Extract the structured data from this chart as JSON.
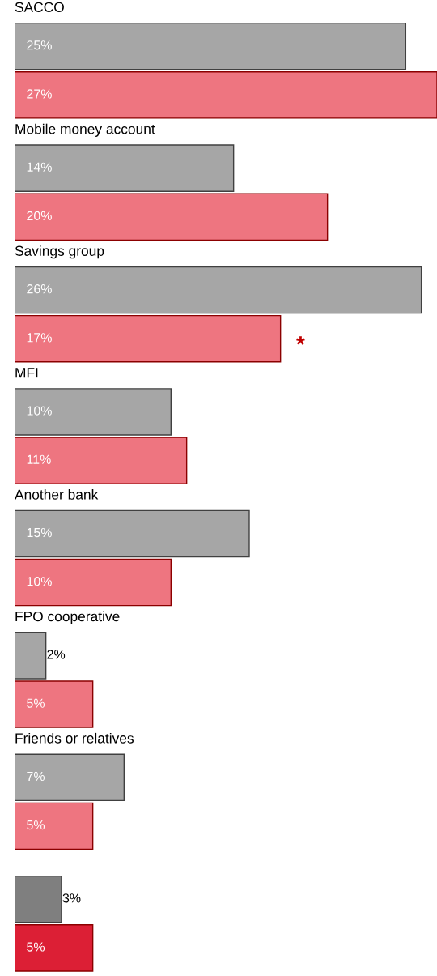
{
  "chart_data": {
    "type": "bar",
    "orientation": "horizontal",
    "categories": [
      "SACCO",
      "Mobile money account",
      "Savings group",
      "MFI",
      "Another bank",
      "FPO cooperative",
      "Friends or relatives",
      null
    ],
    "series": [
      {
        "colors": [
          "#a6a6a6",
          "#a6a6a6",
          "#a6a6a6",
          "#a6a6a6",
          "#a6a6a6",
          "#a6a6a6",
          "#a6a6a6",
          "#7f7f7f"
        ],
        "values": [
          25,
          14,
          26,
          10,
          15,
          2,
          7,
          3
        ],
        "value_labels": [
          "25%",
          "14%",
          "26%",
          "10%",
          "15%",
          "2%",
          "7%",
          "3%"
        ]
      },
      {
        "colors": [
          "#ee7580",
          "#ee7580",
          "#ee7580",
          "#ee7580",
          "#ee7580",
          "#ee7580",
          "#ee7580",
          "#dc1f35"
        ],
        "values": [
          27,
          20,
          17,
          11,
          10,
          5,
          5,
          5
        ],
        "value_labels": [
          "27%",
          "20%",
          "17%",
          "11%",
          "10%",
          "5%",
          "5%",
          "5%"
        ]
      }
    ],
    "xlim": [
      0,
      27
    ],
    "annotations": [
      "*"
    ]
  }
}
